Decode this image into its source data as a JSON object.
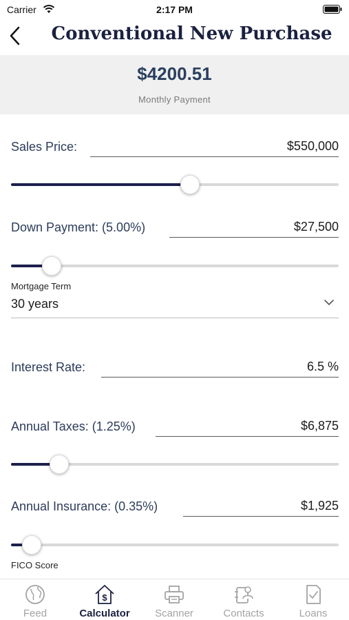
{
  "status_bar": {
    "carrier": "Carrier",
    "time": "2:17 PM"
  },
  "nav": {
    "title": "Conventional New Purchase"
  },
  "summary": {
    "monthly_payment": "$4200.51",
    "monthly_payment_label": "Monthly Payment"
  },
  "fields": {
    "sales_price": {
      "label": "Sales Price:",
      "value": "$550,000",
      "slider_fraction": 0.55
    },
    "down_payment": {
      "label": "Down Payment: (5.00%)",
      "value": "$27,500",
      "slider_fraction": 0.1
    },
    "mortgage_term": {
      "label": "Mortgage Term",
      "value": "30 years"
    },
    "interest_rate": {
      "label": "Interest Rate:",
      "value": "6.5 %"
    },
    "annual_taxes": {
      "label": "Annual Taxes: (1.25%)",
      "value": "$6,875",
      "slider_fraction": 0.125
    },
    "annual_insurance": {
      "label": "Annual Insurance: (0.35%)",
      "value": "$1,925",
      "slider_fraction": 0.035
    },
    "fico_score": {
      "label": "FICO Score"
    }
  },
  "tabbar": {
    "items": [
      {
        "label": "Feed",
        "icon": "globe-icon",
        "active": false
      },
      {
        "label": "Calculator",
        "icon": "house-dollar-icon",
        "active": true
      },
      {
        "label": "Scanner",
        "icon": "printer-icon",
        "active": false
      },
      {
        "label": "Contacts",
        "icon": "contacts-icon",
        "active": false
      },
      {
        "label": "Loans",
        "icon": "document-check-icon",
        "active": false
      }
    ]
  },
  "colors": {
    "accent": "#1d1f4d",
    "track": "#d9d9d9",
    "banner": "#f0f0f0",
    "inactive_tab": "#a3a3a3"
  }
}
